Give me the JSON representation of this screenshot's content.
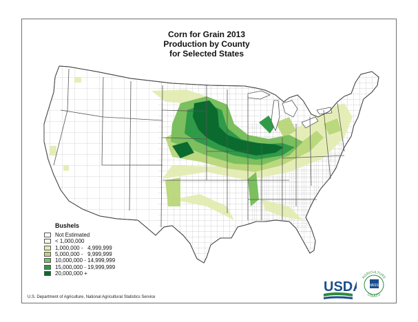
{
  "title": {
    "line1": "Corn for Grain 2013",
    "line2": "Production by County",
    "line3": "for Selected States"
  },
  "legend": {
    "title": "Bushels",
    "items": [
      {
        "label": "Not Estimated",
        "color": "#ffffff"
      },
      {
        "label": "< 1,000,000",
        "color": "#f4f7e4"
      },
      {
        "label": "1,000,000 -   4,999,999",
        "color": "#e3ecb0"
      },
      {
        "label": "5,000,000 -   9,999,999",
        "color": "#b8d67a"
      },
      {
        "label": "10,000,000 - 14,999,999",
        "color": "#7bbf5e"
      },
      {
        "label": "15,000,000 - 19,999,999",
        "color": "#2f9a48"
      },
      {
        "label": "20,000,000 +",
        "color": "#0b6b2e"
      }
    ]
  },
  "credit": "U.S. Department of Agriculture, National Agricultural Statistics Service",
  "logos": {
    "usda": "USDA",
    "seal_top": "AGRICULTURE",
    "seal_bottom": "COUNTS",
    "seal_center": "NASS"
  },
  "colors": {
    "state_border": "#555555",
    "county_line": "#9a9a9a",
    "usda_blue": "#1c4e8c",
    "usda_green": "#2f8a3c"
  }
}
